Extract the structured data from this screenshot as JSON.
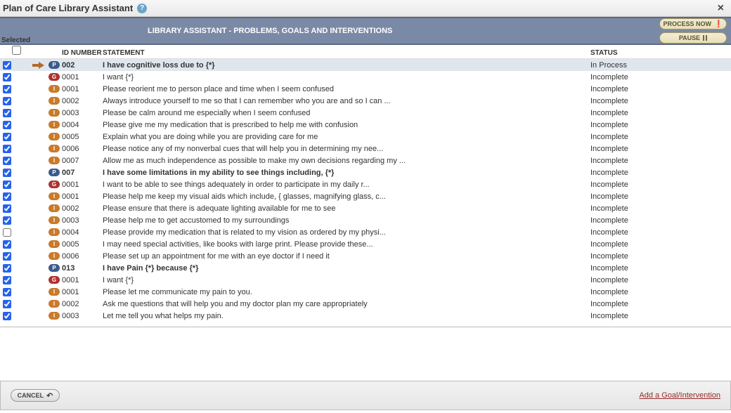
{
  "title": "Plan of Care Library Assistant",
  "band_text": "LIBRARY ASSISTANT - PROBLEMS, GOALS AND INTERVENTIONS",
  "buttons": {
    "process": "PROCESS NOW",
    "pause": "PAUSE",
    "cancel": "CANCEL",
    "add_link": "Add a Goal/Intervention"
  },
  "headers": {
    "selected": "Selected",
    "id": "ID NUMBER",
    "statement": "STATEMENT",
    "status": "STATUS"
  },
  "colors": {
    "band_bg": "#7a8aa6",
    "band_border": "#5b6a84",
    "highlight_row": "#dfe6ee",
    "badge_P": "#3a5a8c",
    "badge_G": "#b03030",
    "badge_I": "#c97a2b",
    "arrow": "#b36b2a",
    "link": "#9a2a2a",
    "checkbox_accent": "#2563eb"
  },
  "rows": [
    {
      "sel": true,
      "arrow": true,
      "badge": "P",
      "id": "002",
      "stmt": "I have cognitive loss due to {*}",
      "status": "In Process",
      "bold": true,
      "highlight": true
    },
    {
      "sel": true,
      "arrow": false,
      "badge": "G",
      "id": "0001",
      "stmt": "I want {*}",
      "status": "Incomplete"
    },
    {
      "sel": true,
      "arrow": false,
      "badge": "I",
      "id": "0001",
      "stmt": "Please reorient me to person place and time when I seem confused",
      "status": "Incomplete"
    },
    {
      "sel": true,
      "arrow": false,
      "badge": "I",
      "id": "0002",
      "stmt": "Always introduce yourself to me so that I can remember who you are and so I can ...",
      "status": "Incomplete"
    },
    {
      "sel": true,
      "arrow": false,
      "badge": "I",
      "id": "0003",
      "stmt": "Please be calm around me especially when I seem confused",
      "status": "Incomplete"
    },
    {
      "sel": true,
      "arrow": false,
      "badge": "I",
      "id": "0004",
      "stmt": "Please give me my medication that is prescribed to help me with confusion",
      "status": "Incomplete"
    },
    {
      "sel": true,
      "arrow": false,
      "badge": "I",
      "id": "0005",
      "stmt": "Explain what you are doing while you are providing care for me",
      "status": "Incomplete"
    },
    {
      "sel": true,
      "arrow": false,
      "badge": "I",
      "id": "0006",
      "stmt": "Please notice any of my nonverbal cues that will help you in determining my nee...",
      "status": "Incomplete"
    },
    {
      "sel": true,
      "arrow": false,
      "badge": "I",
      "id": "0007",
      "stmt": "Allow me as much independence as possible to make my own decisions regarding my ...",
      "status": "Incomplete"
    },
    {
      "sel": true,
      "arrow": false,
      "badge": "P",
      "id": "007",
      "stmt": "I have some limitations in my ability to see things including, {*}",
      "status": "Incomplete",
      "bold": true
    },
    {
      "sel": true,
      "arrow": false,
      "badge": "G",
      "id": "0001",
      "stmt": "I want to be able to see things adequately in order to participate in my daily r...",
      "status": "Incomplete"
    },
    {
      "sel": true,
      "arrow": false,
      "badge": "I",
      "id": "0001",
      "stmt": "Please help me keep my visual aids which include, { glasses, magnifying glass, c...",
      "status": "Incomplete"
    },
    {
      "sel": true,
      "arrow": false,
      "badge": "I",
      "id": "0002",
      "stmt": "Please ensure that there is adequate lighting available for me to see",
      "status": "Incomplete"
    },
    {
      "sel": true,
      "arrow": false,
      "badge": "I",
      "id": "0003",
      "stmt": "Please help me to get accustomed to my surroundings",
      "status": "Incomplete"
    },
    {
      "sel": false,
      "arrow": false,
      "badge": "I",
      "id": "0004",
      "stmt": "Please provide my medication that is related to my vision as ordered by my physi...",
      "status": "Incomplete"
    },
    {
      "sel": true,
      "arrow": false,
      "badge": "I",
      "id": "0005",
      "stmt": "I may need special activities, like books with large print. Please provide these...",
      "status": "Incomplete"
    },
    {
      "sel": true,
      "arrow": false,
      "badge": "I",
      "id": "0006",
      "stmt": "Please set up an appointment for me with an eye doctor if I need it",
      "status": "Incomplete"
    },
    {
      "sel": true,
      "arrow": false,
      "badge": "P",
      "id": "013",
      "stmt": "I have Pain {*} because {*}",
      "status": "Incomplete",
      "bold": true
    },
    {
      "sel": true,
      "arrow": false,
      "badge": "G",
      "id": "0001",
      "stmt": "I want {*}",
      "status": "Incomplete"
    },
    {
      "sel": true,
      "arrow": false,
      "badge": "I",
      "id": "0001",
      "stmt": "Please let me communicate my pain to you.",
      "status": "Incomplete"
    },
    {
      "sel": true,
      "arrow": false,
      "badge": "I",
      "id": "0002",
      "stmt": "Ask me questions that will help you and my doctor plan my care appropriately",
      "status": "Incomplete"
    },
    {
      "sel": true,
      "arrow": false,
      "badge": "I",
      "id": "0003",
      "stmt": "Let me tell you what helps my pain.",
      "status": "Incomplete"
    }
  ]
}
